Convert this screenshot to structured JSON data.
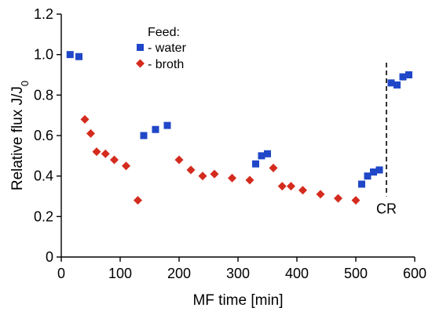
{
  "chart_data": {
    "type": "scatter",
    "xlabel": "MF time [min]",
    "ylabel_main": "Relative flux J/J",
    "ylabel_sub": "0",
    "xlim": [
      0,
      600
    ],
    "ylim": [
      0,
      1.2
    ],
    "x_ticks": [
      0,
      100,
      200,
      300,
      400,
      500,
      600
    ],
    "y_ticks": [
      0,
      0.2,
      0.4,
      0.6,
      0.8,
      1.0,
      1.2
    ],
    "x_tick_labels": [
      "0",
      "100",
      "200",
      "300",
      "400",
      "500",
      "600"
    ],
    "y_tick_labels": [
      "0",
      "0.2",
      "0.4",
      "0.6",
      "0.8",
      "1.0",
      "1.2"
    ],
    "grid": false,
    "legend": {
      "title": "Feed:",
      "placement": "top-center"
    },
    "series": [
      {
        "name": "- water",
        "marker": "square",
        "color": "#1f47c8",
        "points": [
          {
            "x": 15,
            "y": 1.0
          },
          {
            "x": 30,
            "y": 0.99
          },
          {
            "x": 140,
            "y": 0.6
          },
          {
            "x": 160,
            "y": 0.63
          },
          {
            "x": 180,
            "y": 0.65
          },
          {
            "x": 330,
            "y": 0.46
          },
          {
            "x": 340,
            "y": 0.5
          },
          {
            "x": 350,
            "y": 0.51
          },
          {
            "x": 510,
            "y": 0.36
          },
          {
            "x": 520,
            "y": 0.4
          },
          {
            "x": 530,
            "y": 0.42
          },
          {
            "x": 540,
            "y": 0.43
          },
          {
            "x": 560,
            "y": 0.86
          },
          {
            "x": 570,
            "y": 0.85
          },
          {
            "x": 580,
            "y": 0.89
          },
          {
            "x": 590,
            "y": 0.9
          }
        ]
      },
      {
        "name": "- broth",
        "marker": "diamond",
        "color": "#d42b1e",
        "points": [
          {
            "x": 40,
            "y": 0.68
          },
          {
            "x": 50,
            "y": 0.61
          },
          {
            "x": 60,
            "y": 0.52
          },
          {
            "x": 75,
            "y": 0.51
          },
          {
            "x": 90,
            "y": 0.48
          },
          {
            "x": 110,
            "y": 0.45
          },
          {
            "x": 130,
            "y": 0.28
          },
          {
            "x": 200,
            "y": 0.48
          },
          {
            "x": 220,
            "y": 0.43
          },
          {
            "x": 240,
            "y": 0.4
          },
          {
            "x": 260,
            "y": 0.41
          },
          {
            "x": 290,
            "y": 0.39
          },
          {
            "x": 320,
            "y": 0.38
          },
          {
            "x": 360,
            "y": 0.44
          },
          {
            "x": 375,
            "y": 0.35
          },
          {
            "x": 390,
            "y": 0.35
          },
          {
            "x": 410,
            "y": 0.33
          },
          {
            "x": 440,
            "y": 0.31
          },
          {
            "x": 470,
            "y": 0.29
          },
          {
            "x": 500,
            "y": 0.28
          }
        ]
      }
    ],
    "annotation": {
      "label": "CR",
      "x": 552,
      "y_from": 0.3,
      "y_to": 0.96
    }
  }
}
